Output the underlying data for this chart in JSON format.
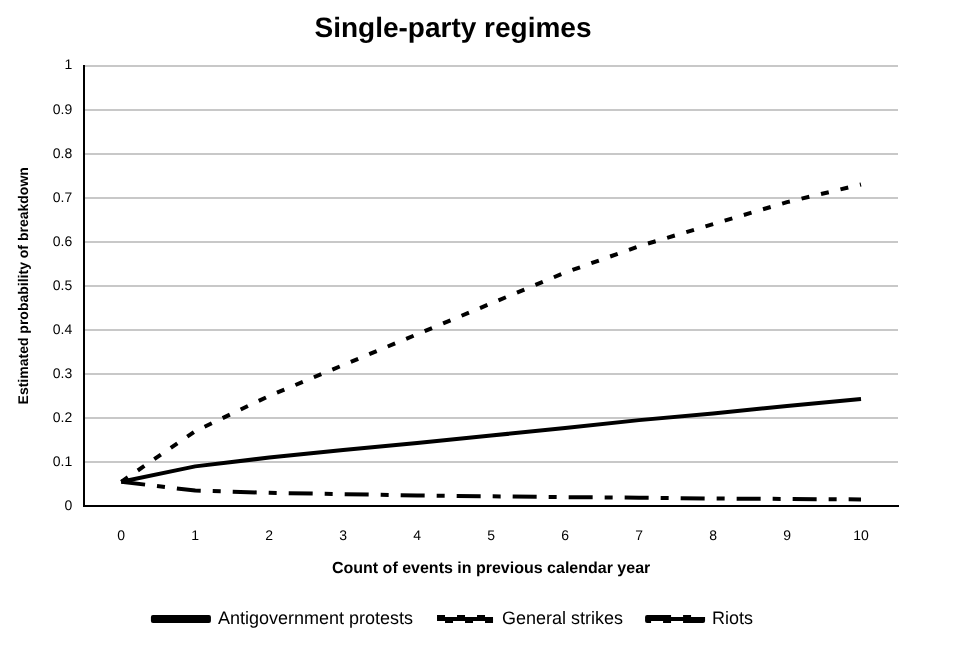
{
  "chart_data": {
    "type": "line",
    "title": "Single-party regimes",
    "xlabel": "Count of events in previous calendar year",
    "ylabel": "Estimated probability of breakdown",
    "categories": [
      "0",
      "1",
      "2",
      "3",
      "4",
      "5",
      "6",
      "7",
      "8",
      "9",
      "10"
    ],
    "ylim": [
      0,
      1
    ],
    "yticks": [
      0,
      0.1,
      0.2,
      0.3,
      0.4,
      0.5,
      0.6,
      0.7,
      0.8,
      0.9,
      1
    ],
    "grid": "y",
    "legend": "bottom",
    "marker": "none",
    "series": [
      {
        "name": "Antigovernment protests",
        "color": "#000000",
        "line_style": "solid",
        "values": [
          0.055,
          0.09,
          0.11,
          0.127,
          0.143,
          0.16,
          0.177,
          0.195,
          0.21,
          0.227,
          0.243
        ]
      },
      {
        "name": "General strikes",
        "color": "#000000",
        "line_style": "dotted",
        "values": [
          0.055,
          0.17,
          0.25,
          0.32,
          0.39,
          0.46,
          0.53,
          0.59,
          0.64,
          0.69,
          0.73
        ]
      },
      {
        "name": "Riots",
        "color": "#000000",
        "line_style": "dashed",
        "values": [
          0.055,
          0.035,
          0.03,
          0.027,
          0.024,
          0.022,
          0.02,
          0.019,
          0.017,
          0.016,
          0.015
        ]
      }
    ]
  }
}
